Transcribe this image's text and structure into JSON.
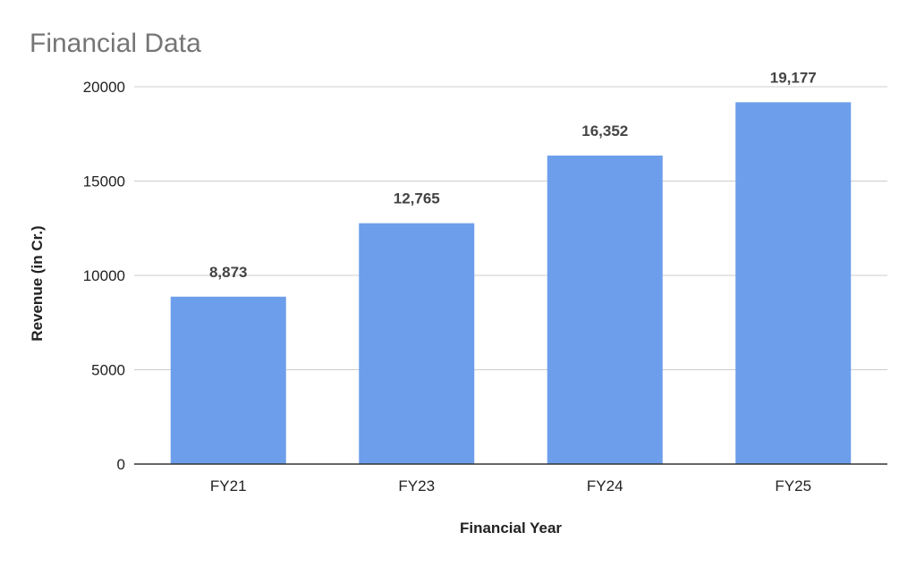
{
  "chart_data": {
    "type": "bar",
    "title": "Financial Data",
    "xlabel": "Financial Year",
    "ylabel": "Revenue (in Cr.)",
    "categories": [
      "FY21",
      "FY23",
      "FY24",
      "FY25"
    ],
    "values": [
      8873,
      12765,
      16352,
      19177
    ],
    "data_labels": [
      "8,873",
      "12,765",
      "16,352",
      "19,177"
    ],
    "y_ticks": [
      0,
      5000,
      10000,
      15000,
      20000
    ],
    "ylim": [
      0,
      20000
    ],
    "grid": true,
    "legend": "none",
    "bar_color": "#6d9eeb"
  }
}
